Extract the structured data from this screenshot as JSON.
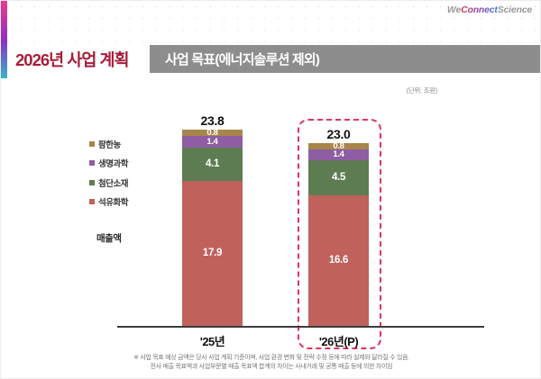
{
  "logo": {
    "we": "We",
    "connect": "Connect",
    "science": "Science"
  },
  "header": {
    "slide_title": "2026년 사업 계획",
    "section_title": "사업 목표(에너지솔루션 제외)"
  },
  "unit_note": "(단위: 조원)",
  "legend": {
    "items": [
      {
        "label": "팜한농",
        "color": "#a8854a"
      },
      {
        "label": "생명과학",
        "color": "#8f5da3"
      },
      {
        "label": "첨단소재",
        "color": "#5e7c52"
      },
      {
        "label": "석유화학",
        "color": "#c0615c"
      }
    ],
    "axis_title": "매출액"
  },
  "chart_data": {
    "type": "bar",
    "stacked": true,
    "unit": "조원",
    "categories": [
      "'25년",
      "'26년(P)"
    ],
    "series": [
      {
        "name": "석유화학",
        "color": "#c0615c",
        "values": [
          17.9,
          16.6
        ]
      },
      {
        "name": "첨단소재",
        "color": "#5e7c52",
        "values": [
          4.1,
          4.5
        ]
      },
      {
        "name": "생명과학",
        "color": "#8f5da3",
        "values": [
          1.4,
          1.4
        ]
      },
      {
        "name": "팜한농",
        "color": "#a8854a",
        "values": [
          0.8,
          0.8
        ]
      }
    ],
    "totals": [
      23.8,
      23.0
    ],
    "highlight_category": "'26년(P)",
    "legend_position": "left",
    "grid": false
  },
  "footnote": {
    "line1": "※ 사업 목표 예상 금액은 당사 사업 계획 기준이며, 사업 환경 변화 및 전략 수정 등에 따라 실제와 달라질 수 있음.",
    "line2": "전사 매출 목표액과 사업부문별 매출 목표액 합계의 차이는 사내거래 및 공통 매출 등에 의한 차이임"
  },
  "colors": {
    "title_crimson": "#a61e38",
    "section_bar_gray": "#8d8d8d",
    "highlight_dashed": "#dd3560",
    "stripe_gradient": [
      "#ec3a8e",
      "#8b2fc0",
      "#37b5cc"
    ]
  }
}
